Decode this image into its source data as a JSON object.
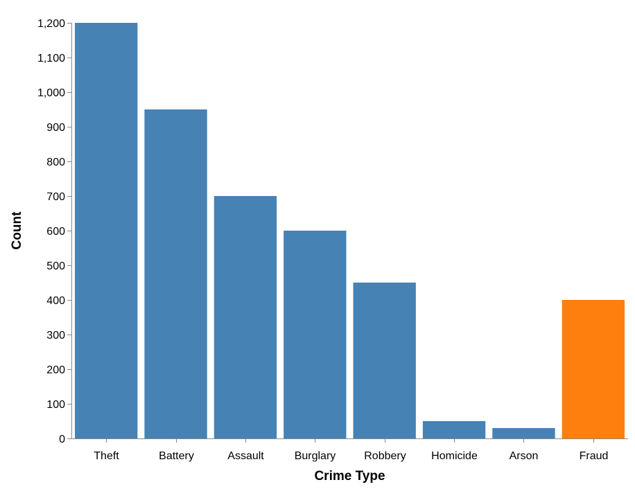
{
  "chart_data": {
    "type": "bar",
    "categories": [
      "Theft",
      "Battery",
      "Assault",
      "Burglary",
      "Robbery",
      "Homicide",
      "Arson",
      "Fraud"
    ],
    "values": [
      1200,
      950,
      700,
      600,
      450,
      50,
      30,
      400
    ],
    "bar_colors": [
      "#4682b4",
      "#4682b4",
      "#4682b4",
      "#4682b4",
      "#4682b4",
      "#4682b4",
      "#4682b4",
      "#ff7f0e"
    ],
    "highlight_color": "#ff7f0e",
    "bar_color": "#4682b4",
    "title": "",
    "xlabel": "Crime Type",
    "ylabel": "Count",
    "ylim": [
      0,
      1200
    ],
    "yticks": [
      0,
      100,
      200,
      300,
      400,
      500,
      600,
      700,
      800,
      900,
      1000,
      1100,
      1200
    ],
    "ytick_labels": [
      "0",
      "100",
      "200",
      "300",
      "400",
      "500",
      "600",
      "700",
      "800",
      "900",
      "1,000",
      "1,100",
      "1,200"
    ],
    "grid": false,
    "legend": "none"
  }
}
